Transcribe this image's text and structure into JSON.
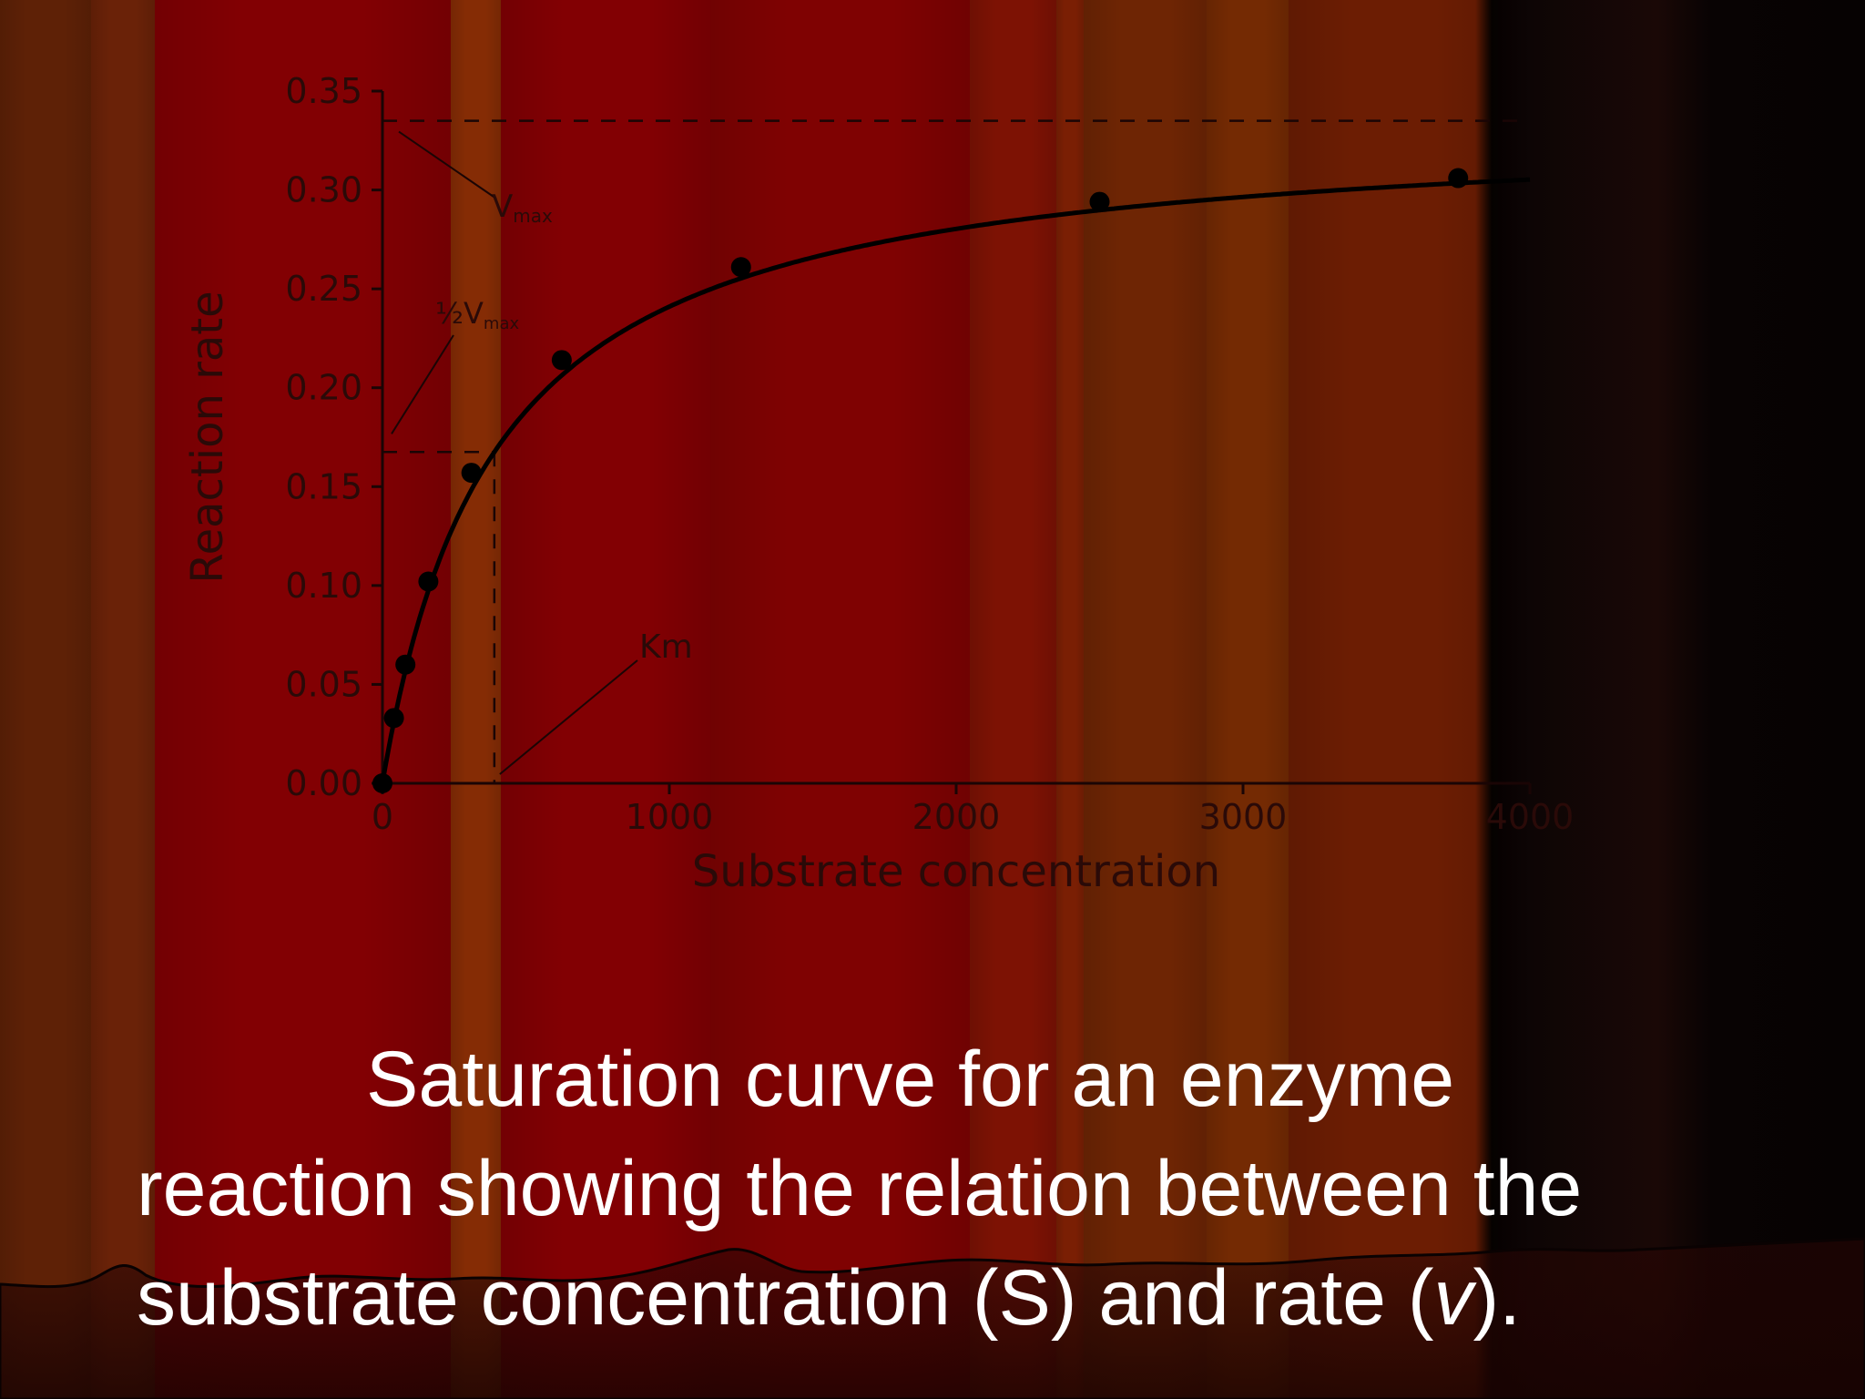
{
  "chart_data": {
    "type": "line",
    "title": "",
    "xlabel": "Substrate concentration",
    "ylabel": "Reaction rate",
    "xlim": [
      0,
      4000
    ],
    "ylim": [
      0,
      0.35
    ],
    "x_ticks": [
      0,
      1000,
      2000,
      3000,
      4000
    ],
    "x_tick_labels": [
      "0",
      "1000",
      "2000",
      "3000",
      "4000"
    ],
    "y_ticks": [
      0,
      0.05,
      0.1,
      0.15,
      0.2,
      0.25,
      0.3,
      0.35
    ],
    "y_tick_labels": [
      "0.00",
      "0.05",
      "0.10",
      "0.15",
      "0.20",
      "0.25",
      "0.30",
      "0.35"
    ],
    "grid": false,
    "series": [
      {
        "x": [
          0,
          40,
          80,
          160,
          310,
          625,
          1250,
          2500,
          3750
        ],
        "y": [
          0.0,
          0.033,
          0.06,
          0.102,
          0.157,
          0.214,
          0.261,
          0.294,
          0.306
        ]
      }
    ],
    "reference_lines": {
      "vmax": 0.335,
      "half_vmax": 0.1675,
      "km": 390
    },
    "annotations": [
      {
        "id": "vmax",
        "label": "V",
        "sub": "max"
      },
      {
        "id": "half-vmax",
        "label": "½V",
        "sub": "max"
      },
      {
        "id": "km",
        "label": "Km"
      }
    ],
    "colors": {
      "curve": "#000000",
      "axes": "#1a0505",
      "labels": "#2a0a08"
    }
  },
  "background": {
    "stripes": [
      "#5e2106",
      "#6a2208",
      "#820003",
      "#852c05",
      "#820003",
      "#7f0202",
      "#7d1204",
      "#7a1f04",
      "#6e2504",
      "#742a03",
      "#6c1d03",
      "#7a0002",
      "#6e2003"
    ]
  },
  "caption": {
    "line1": "Saturation curve for an enzyme",
    "line2": "reaction showing the relation between the",
    "line3_a": "substrate concentration (S) and rate (",
    "line3_var": "v",
    "line3_b": ")."
  }
}
